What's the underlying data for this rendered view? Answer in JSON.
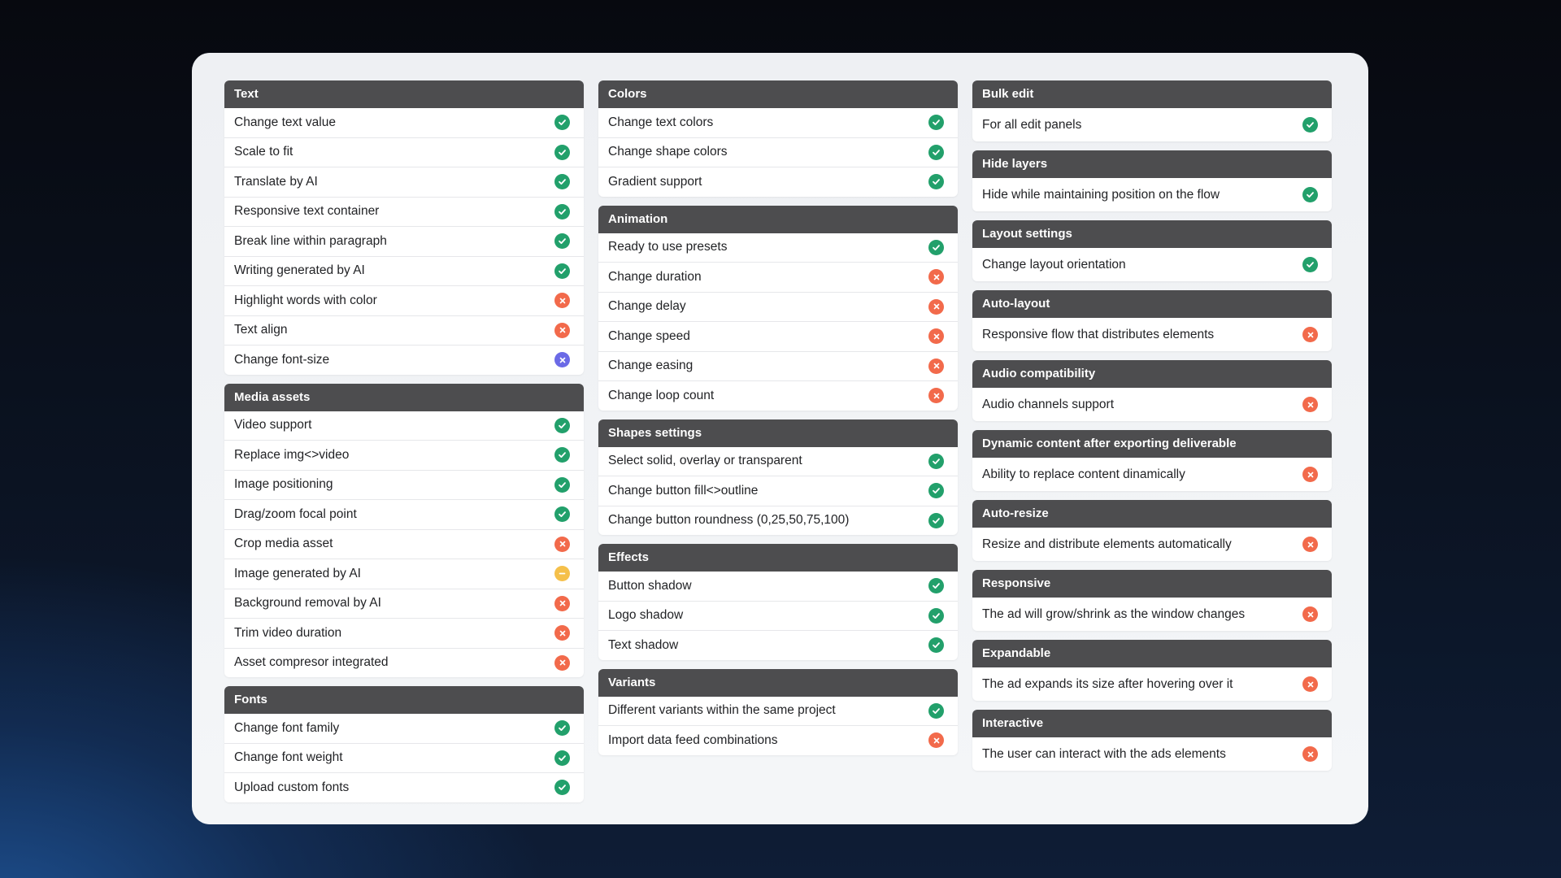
{
  "colors": {
    "header_bg": "#4d4d4f",
    "yes": "#22a06b",
    "no": "#f26a4b",
    "partial": "#f5c04a",
    "info": "#6b6ae6"
  },
  "columns": [
    [
      {
        "title": "Text",
        "items": [
          {
            "label": "Change text value",
            "status": "check-icon"
          },
          {
            "label": "Scale to fit",
            "status": "check-icon"
          },
          {
            "label": "Translate by AI",
            "status": "check-icon"
          },
          {
            "label": "Responsive text container",
            "status": "check-icon"
          },
          {
            "label": "Break line within paragraph",
            "status": "check-icon"
          },
          {
            "label": "Writing generated by AI",
            "status": "check-icon"
          },
          {
            "label": "Highlight words with color",
            "status": "cross-icon"
          },
          {
            "label": "Text align",
            "status": "cross-icon"
          },
          {
            "label": "Change font-size",
            "status": "cross-purple-icon"
          }
        ]
      },
      {
        "title": "Media assets",
        "items": [
          {
            "label": "Video support",
            "status": "check-icon"
          },
          {
            "label": "Replace img<>video",
            "status": "check-icon"
          },
          {
            "label": "Image positioning",
            "status": "check-icon"
          },
          {
            "label": "Drag/zoom focal point",
            "status": "check-icon"
          },
          {
            "label": "Crop media asset",
            "status": "cross-icon"
          },
          {
            "label": "Image generated by AI",
            "status": "minus-icon"
          },
          {
            "label": "Background removal by AI",
            "status": "cross-icon"
          },
          {
            "label": "Trim video duration",
            "status": "cross-icon"
          },
          {
            "label": "Asset compresor integrated",
            "status": "cross-icon"
          }
        ]
      },
      {
        "title": "Fonts",
        "items": [
          {
            "label": "Change font family",
            "status": "check-icon"
          },
          {
            "label": "Change font weight",
            "status": "check-icon"
          },
          {
            "label": "Upload custom fonts",
            "status": "check-icon"
          }
        ]
      }
    ],
    [
      {
        "title": "Colors",
        "items": [
          {
            "label": "Change text colors",
            "status": "check-icon"
          },
          {
            "label": "Change shape colors",
            "status": "check-icon"
          },
          {
            "label": "Gradient support",
            "status": "check-icon"
          }
        ]
      },
      {
        "title": "Animation",
        "items": [
          {
            "label": "Ready to use presets",
            "status": "check-icon"
          },
          {
            "label": "Change duration",
            "status": "cross-icon"
          },
          {
            "label": "Change delay",
            "status": "cross-icon"
          },
          {
            "label": "Change speed",
            "status": "cross-icon"
          },
          {
            "label": "Change easing",
            "status": "cross-icon"
          },
          {
            "label": "Change loop count",
            "status": "cross-icon"
          }
        ]
      },
      {
        "title": "Shapes settings",
        "items": [
          {
            "label": "Select solid, overlay or transparent",
            "status": "check-icon"
          },
          {
            "label": "Change button fill<>outline",
            "status": "check-icon"
          },
          {
            "label": "Change button roundness (0,25,50,75,100)",
            "status": "check-icon"
          }
        ]
      },
      {
        "title": "Effects",
        "items": [
          {
            "label": "Button shadow",
            "status": "check-icon"
          },
          {
            "label": "Logo shadow",
            "status": "check-icon"
          },
          {
            "label": "Text shadow",
            "status": "check-icon"
          }
        ]
      },
      {
        "title": "Variants",
        "items": [
          {
            "label": "Different variants within the same project",
            "status": "check-icon"
          },
          {
            "label": "Import data feed combinations",
            "status": "cross-icon"
          }
        ]
      }
    ],
    [
      {
        "title": "Bulk edit",
        "items": [
          {
            "label": "For all edit panels",
            "status": "check-icon"
          }
        ]
      },
      {
        "title": "Hide layers",
        "items": [
          {
            "label": "Hide while maintaining position on the flow",
            "status": "check-icon"
          }
        ]
      },
      {
        "title": "Layout settings",
        "items": [
          {
            "label": "Change layout orientation",
            "status": "check-icon"
          }
        ]
      },
      {
        "title": "Auto-layout",
        "items": [
          {
            "label": "Responsive flow that distributes elements",
            "status": "cross-icon"
          }
        ]
      },
      {
        "title": "Audio compatibility",
        "items": [
          {
            "label": "Audio channels support",
            "status": "cross-icon"
          }
        ]
      },
      {
        "title": "Dynamic content after exporting deliverable",
        "items": [
          {
            "label": "Ability to replace content dinamically",
            "status": "cross-icon"
          }
        ]
      },
      {
        "title": "Auto-resize",
        "items": [
          {
            "label": "Resize and distribute elements automatically",
            "status": "cross-icon"
          }
        ]
      },
      {
        "title": "Responsive",
        "items": [
          {
            "label": "The ad will grow/shrink as the window changes",
            "status": "cross-icon"
          }
        ]
      },
      {
        "title": "Expandable",
        "items": [
          {
            "label": "The ad expands its size after hovering over it",
            "status": "cross-icon"
          }
        ]
      },
      {
        "title": "Interactive",
        "items": [
          {
            "label": "The user can interact with the ads elements",
            "status": "cross-icon"
          }
        ]
      }
    ]
  ]
}
